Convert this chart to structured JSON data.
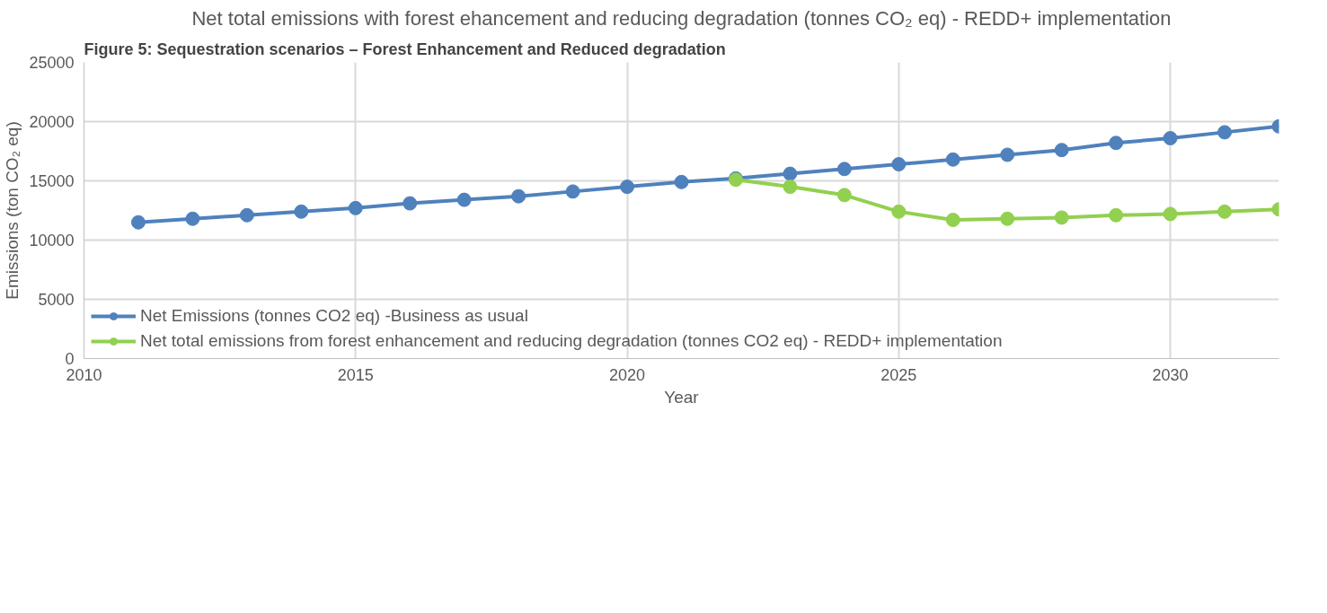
{
  "chart_data": {
    "type": "line",
    "title": "Net total emissions with forest ehancement and reducing degradation (tonnes CO₂ eq) - REDD+ implementation",
    "xlabel": "Year",
    "ylabel": "Emissions (ton CO₂ eq)",
    "annotations": [
      "Figure 5: Sequestration scenarios – Forest Enhancement and Reduced degradation"
    ],
    "x": [
      2011,
      2012,
      2013,
      2014,
      2015,
      2016,
      2017,
      2018,
      2019,
      2020,
      2021,
      2022,
      2023,
      2024,
      2025,
      2026,
      2027,
      2028,
      2029,
      2030,
      2031,
      2032
    ],
    "series": [
      {
        "name": "Net Emissions (tonnes CO2 eq) -Business as usual",
        "color": "#4f81bd",
        "values": [
          11500,
          11800,
          12100,
          12400,
          12700,
          13100,
          13400,
          13700,
          14100,
          14500,
          14900,
          15200,
          15600,
          16000,
          16400,
          16800,
          17200,
          17600,
          18200,
          18600,
          19100,
          19600
        ]
      },
      {
        "name": "Net total emissions from forest enhancement and reducing degradation (tonnes CO2 eq) - REDD+ implementation",
        "color": "#92d050",
        "values": [
          null,
          null,
          null,
          null,
          null,
          null,
          null,
          null,
          null,
          null,
          null,
          15100,
          14500,
          13800,
          12400,
          11700,
          11800,
          11900,
          12100,
          12200,
          12400,
          12600
        ]
      }
    ],
    "xlim": [
      2010,
      2032
    ],
    "xticks": [
      2010,
      2015,
      2020,
      2025,
      2030
    ],
    "ylim": [
      0,
      25000
    ],
    "yticks": [
      0,
      5000,
      10000,
      15000,
      20000,
      25000
    ],
    "grid": true,
    "legend": "bottom",
    "marker": "circle",
    "line_style": "solid"
  }
}
